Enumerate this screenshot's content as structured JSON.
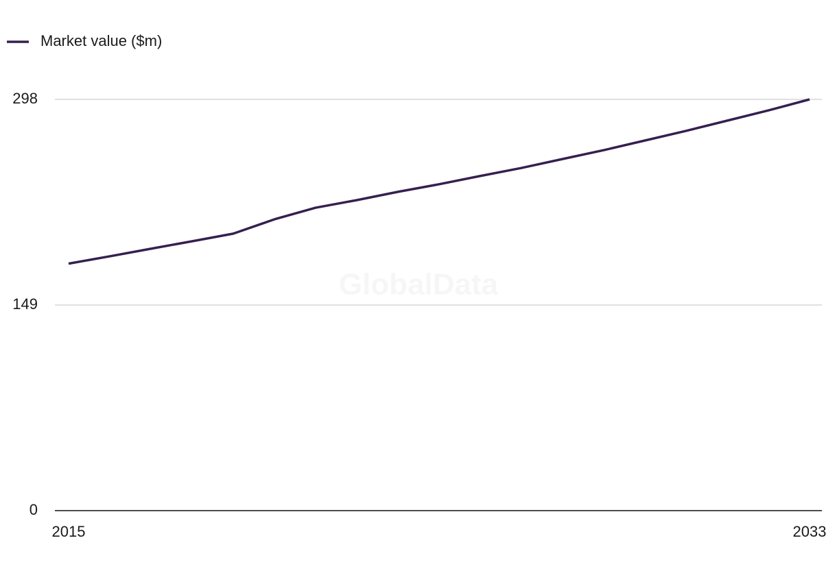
{
  "chart_data": {
    "type": "line",
    "legend": "top-left",
    "watermark": "GlobalData",
    "x": [
      2015,
      2016,
      2017,
      2018,
      2019,
      2020,
      2021,
      2022,
      2023,
      2024,
      2025,
      2026,
      2027,
      2028,
      2029,
      2030,
      2031,
      2032,
      2033
    ],
    "series": [
      {
        "name": "Market value ($m)",
        "color": "#35204f",
        "values": [
          179,
          184.3,
          189.8,
          195.2,
          200.7,
          211.1,
          219.5,
          225,
          231,
          236.5,
          242.5,
          248.3,
          254.8,
          261.2,
          268.2,
          275.2,
          282.6,
          290,
          298
        ]
      }
    ],
    "xlim": [
      2015,
      2033
    ],
    "xticks": [
      2015,
      2033
    ],
    "ylim": [
      0,
      298
    ],
    "yticks": [
      0,
      149,
      298
    ],
    "grid": true
  }
}
